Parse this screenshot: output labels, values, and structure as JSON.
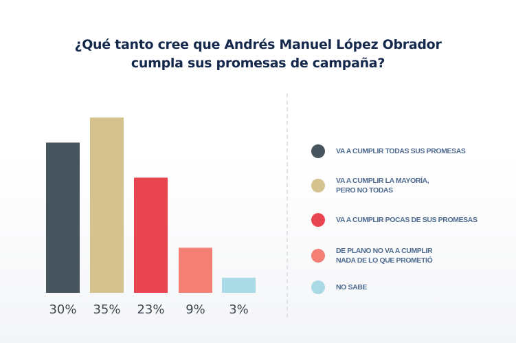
{
  "chart_data": {
    "type": "bar",
    "title": "¿Qué tanto cree que Andrés Manuel López Obrador cumpla sus promesas de campaña?",
    "title_lines": [
      "¿Qué tanto cree que Andrés Manuel López Obrador",
      "cumpla sus promesas de campaña?"
    ],
    "categories": [
      "VA A CUMPLIR TODAS SUS PROMESAS",
      "VA A CUMPLIR LA MAYORÍA,\nPERO NO TODAS",
      "VA A CUMPLIR POCAS DE SUS PROMESAS",
      "DE PLANO NO VA A CUMPLIR\nNADA DE LO QUE PROMETIÓ",
      "NO SABE"
    ],
    "values": [
      30,
      35,
      23,
      9,
      3
    ],
    "value_labels": [
      "30%",
      "35%",
      "23%",
      "9%",
      "3%"
    ],
    "colors": [
      "#47555f",
      "#d5c38f",
      "#e94550",
      "#f47f75",
      "#a9dae6"
    ],
    "xlabel": "",
    "ylabel": "",
    "ylim": [
      0,
      35
    ],
    "grid": false,
    "legend_position": "right"
  }
}
